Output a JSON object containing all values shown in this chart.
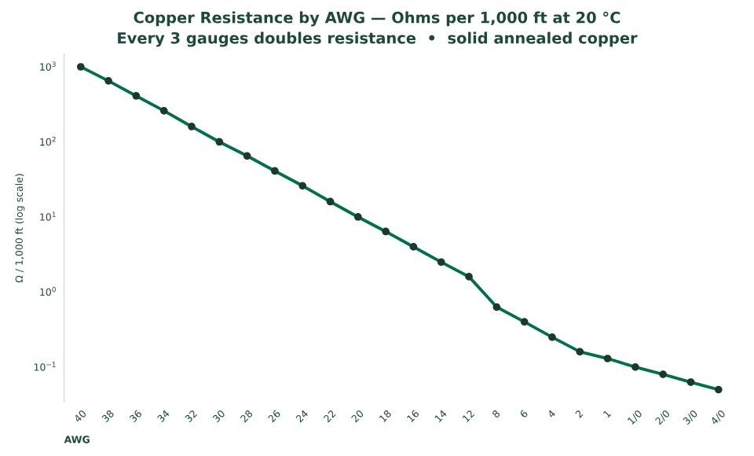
{
  "chart_data": {
    "type": "line",
    "title": "Copper Resistance by AWG — Ohms per 1,000 ft at 20 °C",
    "subtitle": "Every 3 gauges doubles resistance  •  solid annealed copper",
    "xlabel": "AWG",
    "ylabel": "Ω / 1,000 ft (log scale)",
    "categories": [
      "40",
      "38",
      "36",
      "34",
      "32",
      "30",
      "28",
      "26",
      "24",
      "22",
      "20",
      "18",
      "16",
      "14",
      "12",
      "8",
      "6",
      "4",
      "2",
      "1",
      "1/0",
      "2/0",
      "3/0",
      "4/0"
    ],
    "series": [
      {
        "color": "#00704a",
        "values": [
          1000,
          650,
          410,
          260,
          160,
          100,
          65,
          41,
          26,
          16,
          10,
          6.4,
          4,
          2.5,
          1.6,
          0.63,
          0.4,
          0.25,
          0.16,
          0.13,
          0.1,
          0.08,
          0.063,
          0.05
        ]
      }
    ],
    "log": "y",
    "ylim": [
      0.035,
      1450
    ],
    "yticks": [
      {
        "value": 1000,
        "label": "10$^{3}$"
      },
      {
        "value": 100,
        "label": "10$^{2}$"
      },
      {
        "value": 10,
        "label": "10$^{1}$"
      },
      {
        "value": 1,
        "label": "10$^{0}$"
      },
      {
        "value": 0.1,
        "label": "10$^{−1}$"
      }
    ],
    "marker": "circle",
    "line_style": "solid",
    "grid": false,
    "legend": false
  }
}
